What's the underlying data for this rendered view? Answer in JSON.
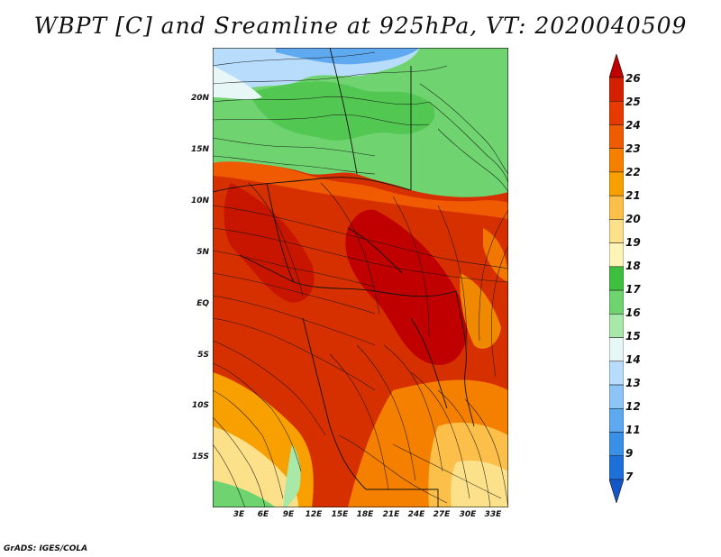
{
  "title": "WBPT [C] and Sreamline at 925hPa, VT: 2020040509",
  "credit": "GrADS: IGES/COLA",
  "map": {
    "lat_labels": [
      "20N",
      "15N",
      "10N",
      "5N",
      "EQ",
      "5S",
      "10S",
      "15S"
    ],
    "lon_labels": [
      "3E",
      "6E",
      "9E",
      "12E",
      "15E",
      "18E",
      "21E",
      "24E",
      "27E",
      "30E",
      "33E"
    ]
  },
  "colorbar": {
    "levels": [
      "26",
      "25",
      "24",
      "23",
      "22",
      "21",
      "20",
      "19",
      "18",
      "17",
      "16",
      "15",
      "14",
      "13",
      "12",
      "11",
      "9",
      "7"
    ],
    "colors": [
      "#c00000",
      "#d52000",
      "#e63a00",
      "#f05a00",
      "#f58000",
      "#f8a000",
      "#fcbf4a",
      "#fde08a",
      "#fdf5b8",
      "#3fbf3f",
      "#6fd36f",
      "#a8e8a8",
      "#e6f7f5",
      "#b8dcfb",
      "#8cc4f5",
      "#5ea9ef",
      "#3a8fe6",
      "#1f6fd8",
      "#1457c8"
    ]
  }
}
